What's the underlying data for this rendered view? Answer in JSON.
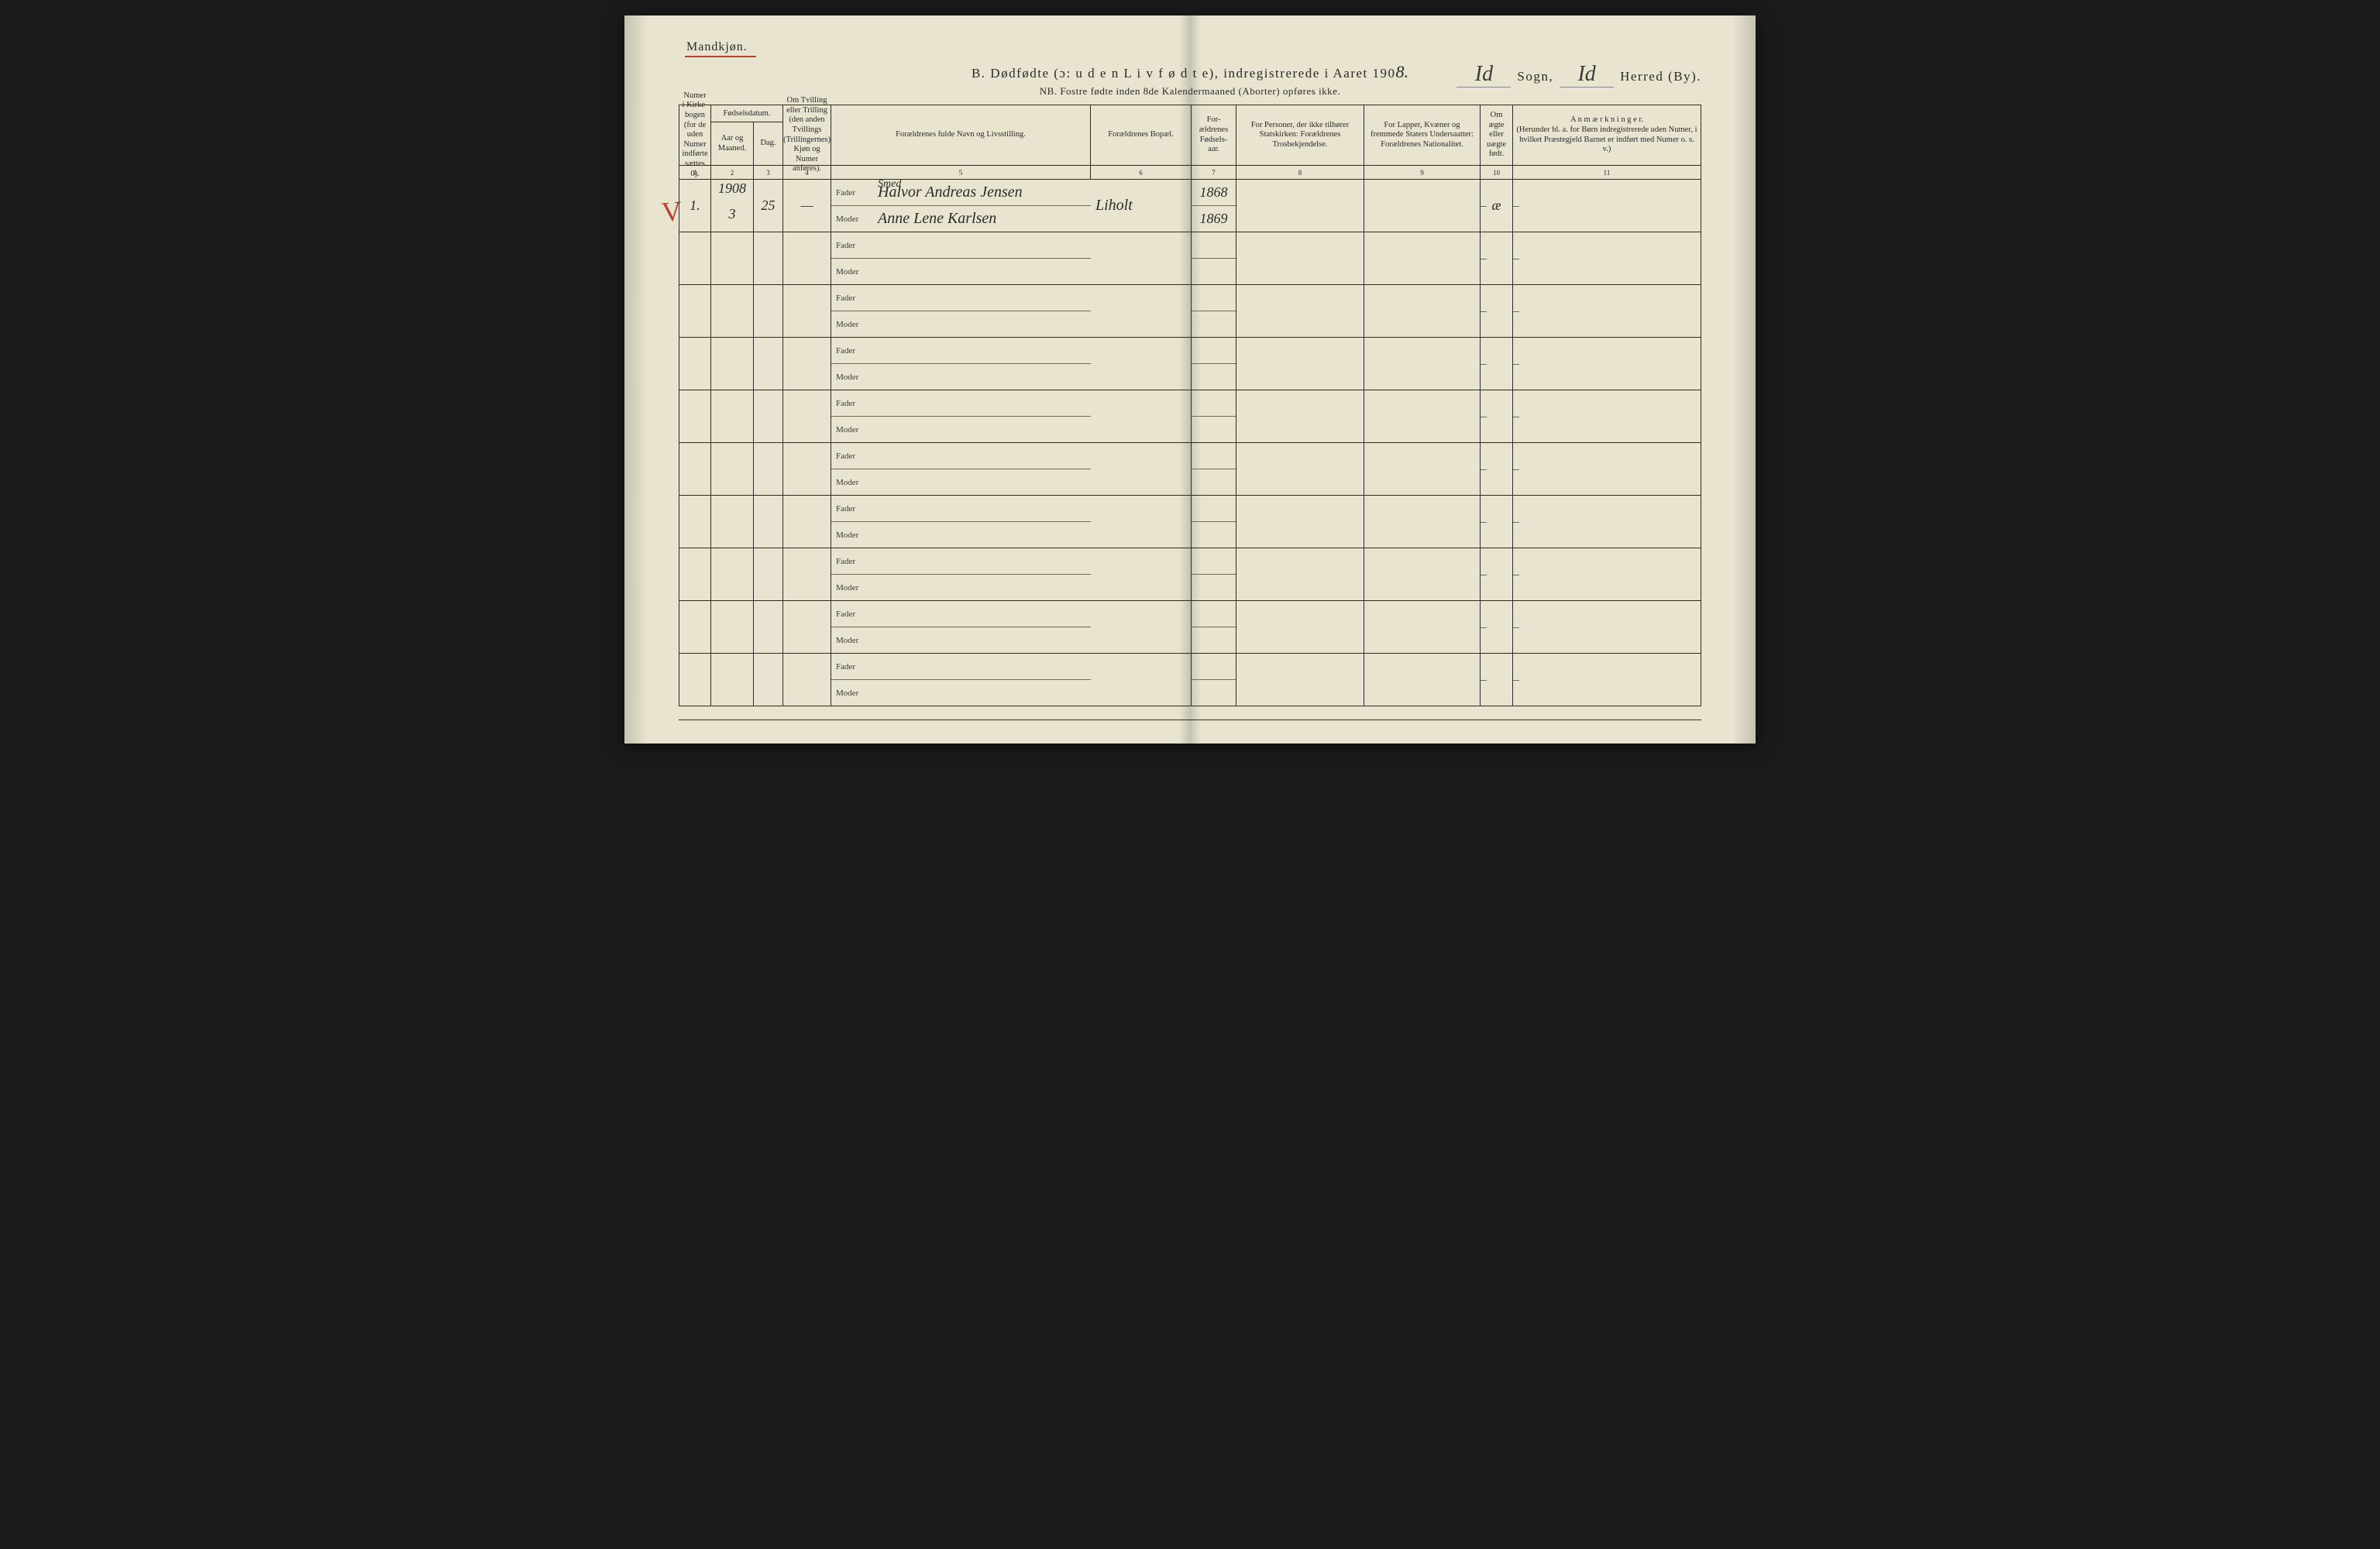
{
  "page": {
    "background": "#e8e4d0",
    "ink": "#2a2a2a",
    "red": "#b84030"
  },
  "header": {
    "gender": "Mandkjøn.",
    "title_prefix": "B.   Dødfødte (ɔ: u d e n  L i v  f ø d t e),  indregistrerede i Aaret 190",
    "year_suffix": "8.",
    "sogn_hw": "Id",
    "sogn_label": "Sogn,",
    "herred_hw": "Id",
    "herred_label": "Herred (By).",
    "sub_note": "NB.  Fostre fødte inden 8de Kalendermaaned (Aborter) opføres ikke."
  },
  "columns": {
    "c1": "Numer i Kirke-bogen (for de uden Numer indførte sættes 0).",
    "c2_top": "Fødselsdatum.",
    "c2a": "Aar og Maaned.",
    "c2b": "Dag.",
    "c4": "Om Tvilling eller Trilling (den anden Tvillings (Trillingernes) Kjøn og Numer anføres).",
    "c5": "Forældrenes fulde Navn og Livsstilling.",
    "c6": "Forældrenes Bopæl.",
    "c7": "For-ældrenes Fødsels-aar.",
    "c8": "For Personer, der ikke tilhører Statskirken: Forældrenes Trosbekjendelse.",
    "c9": "For Lapper, Kvæner og fremmede Staters Undersaatter: Forældrenes Nationalitet.",
    "c10": "Om ægte eller uægte født.",
    "c11": "A n m æ r k n i n g e r.\n(Herunder bl. a. for Børn indregistrerede uden Numer, i hvilket Præstegjeld Barnet er indført med Numer o. s. v.)",
    "nums": [
      "1",
      "2",
      "3",
      "4",
      "5",
      "6",
      "7",
      "8",
      "9",
      "10",
      "11"
    ]
  },
  "labels": {
    "fader": "Fader",
    "moder": "Moder"
  },
  "records": [
    {
      "num": "1.",
      "year_top": "1908",
      "month": "3",
      "day": "25",
      "twin": "—",
      "fader_note": "Smed",
      "fader_name": "Halvor Andreas Jensen",
      "moder_name": "Anne Lene Karlsen",
      "bopel": "Liholt",
      "fader_birth": "1868",
      "moder_birth": "1869",
      "legit": "æ"
    },
    {},
    {},
    {},
    {},
    {},
    {},
    {},
    {},
    {}
  ]
}
